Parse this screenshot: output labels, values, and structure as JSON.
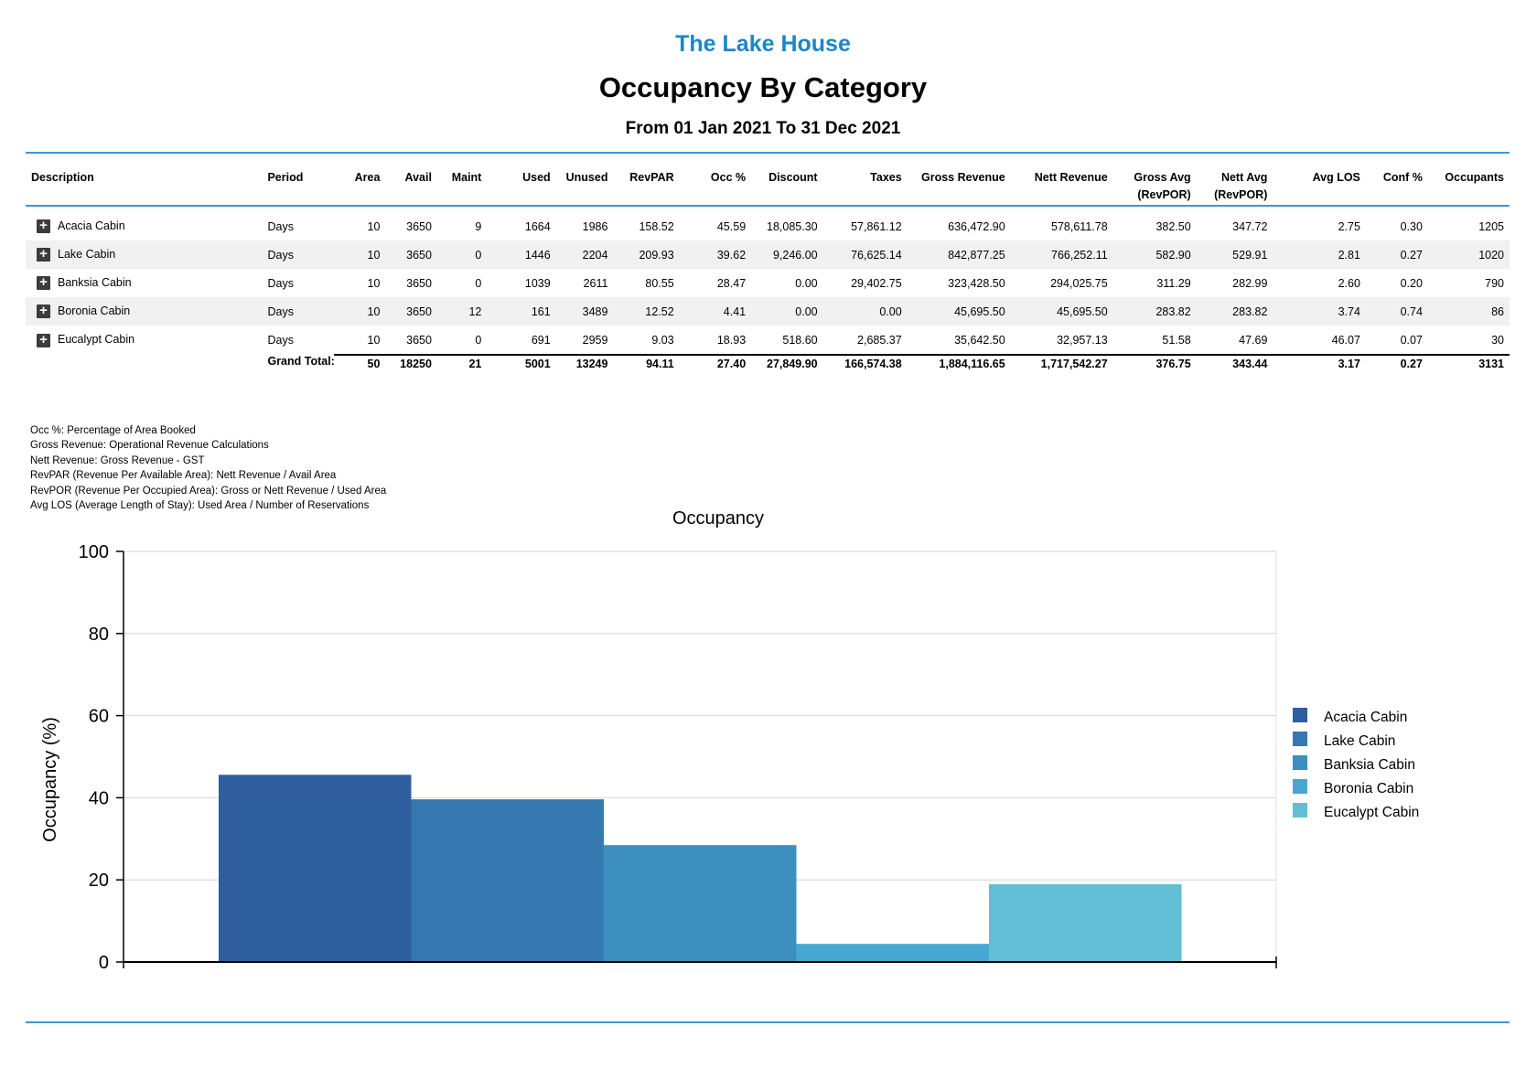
{
  "header": {
    "org_name": "The Lake House",
    "title": "Occupancy By Category",
    "date_range": "From 01 Jan 2021 To 31 Dec 2021"
  },
  "table": {
    "columns": [
      {
        "label": "Description",
        "sub": "",
        "align": "l"
      },
      {
        "label": "Period",
        "sub": "",
        "align": "l"
      },
      {
        "label": "Area",
        "sub": "",
        "align": "r"
      },
      {
        "label": "Avail",
        "sub": "",
        "align": "r"
      },
      {
        "label": "Maint",
        "sub": "",
        "align": "r"
      },
      {
        "label": "Used",
        "sub": "",
        "align": "r"
      },
      {
        "label": "Unused",
        "sub": "",
        "align": "r"
      },
      {
        "label": "RevPAR",
        "sub": "",
        "align": "r"
      },
      {
        "label": "Occ %",
        "sub": "",
        "align": "r"
      },
      {
        "label": "Discount",
        "sub": "",
        "align": "r"
      },
      {
        "label": "Taxes",
        "sub": "",
        "align": "r"
      },
      {
        "label": "Gross Revenue",
        "sub": "",
        "align": "r"
      },
      {
        "label": "Nett Revenue",
        "sub": "",
        "align": "r"
      },
      {
        "label": "Gross Avg",
        "sub": "(RevPOR)",
        "align": "r"
      },
      {
        "label": "Nett Avg",
        "sub": "(RevPOR)",
        "align": "r"
      },
      {
        "label": "Avg LOS",
        "sub": "",
        "align": "r"
      },
      {
        "label": "Conf %",
        "sub": "",
        "align": "r"
      },
      {
        "label": "Occupants",
        "sub": "",
        "align": "r"
      }
    ],
    "rows": [
      [
        "Acacia Cabin",
        "Days",
        "10",
        "3650",
        "9",
        "1664",
        "1986",
        "158.52",
        "45.59",
        "18,085.30",
        "57,861.12",
        "636,472.90",
        "578,611.78",
        "382.50",
        "347.72",
        "2.75",
        "0.30",
        "1205"
      ],
      [
        "Lake Cabin",
        "Days",
        "10",
        "3650",
        "0",
        "1446",
        "2204",
        "209.93",
        "39.62",
        "9,246.00",
        "76,625.14",
        "842,877.25",
        "766,252.11",
        "582.90",
        "529.91",
        "2.81",
        "0.27",
        "1020"
      ],
      [
        "Banksia Cabin",
        "Days",
        "10",
        "3650",
        "0",
        "1039",
        "2611",
        "80.55",
        "28.47",
        "0.00",
        "29,402.75",
        "323,428.50",
        "294,025.75",
        "311.29",
        "282.99",
        "2.60",
        "0.20",
        "790"
      ],
      [
        "Boronia Cabin",
        "Days",
        "10",
        "3650",
        "12",
        "161",
        "3489",
        "12.52",
        "4.41",
        "0.00",
        "0.00",
        "45,695.50",
        "45,695.50",
        "283.82",
        "283.82",
        "3.74",
        "0.74",
        "86"
      ],
      [
        "Eucalypt Cabin",
        "Days",
        "10",
        "3650",
        "0",
        "691",
        "2959",
        "9.03",
        "18.93",
        "518.60",
        "2,685.37",
        "35,642.50",
        "32,957.13",
        "51.58",
        "47.69",
        "46.07",
        "0.07",
        "30"
      ]
    ],
    "grand_total_label": "Grand Total:",
    "grand_total": [
      "50",
      "18250",
      "21",
      "5001",
      "13249",
      "94.11",
      "27.40",
      "27,849.90",
      "166,574.38",
      "1,884,116.65",
      "1,717,542.27",
      "376.75",
      "343.44",
      "3.17",
      "0.27",
      "3131"
    ]
  },
  "notes": [
    "Occ %: Percentage of Area Booked",
    "Gross Revenue: Operational Revenue Calculations",
    "Nett Revenue: Gross Revenue - GST",
    "RevPAR (Revenue Per Available Area): Nett Revenue / Avail Area",
    "RevPOR (Revenue Per Occupied Area): Gross or Nett Revenue / Used Area",
    "Avg LOS (Average Length of Stay): Used Area / Number of Reservations"
  ],
  "chart_data": {
    "type": "bar",
    "title": "Occupancy",
    "xlabel": "",
    "ylabel": "Occupancy (%)",
    "ylim": [
      0,
      100
    ],
    "yticks": [
      0,
      20,
      40,
      60,
      80,
      100
    ],
    "grid": true,
    "legend_position": "right",
    "series": [
      {
        "name": "Acacia Cabin",
        "value": 45.59,
        "color": "#2e5e9e"
      },
      {
        "name": "Lake Cabin",
        "value": 39.62,
        "color": "#3678b0"
      },
      {
        "name": "Banksia Cabin",
        "value": 28.47,
        "color": "#3d8fbf"
      },
      {
        "name": "Boronia Cabin",
        "value": 4.41,
        "color": "#46a8d2"
      },
      {
        "name": "Eucalypt Cabin",
        "value": 18.93,
        "color": "#62bed4"
      }
    ]
  },
  "colors": {
    "accent": "#1a86c8",
    "rule": "#3d97d3",
    "row_alt": "#f1f1f1"
  }
}
